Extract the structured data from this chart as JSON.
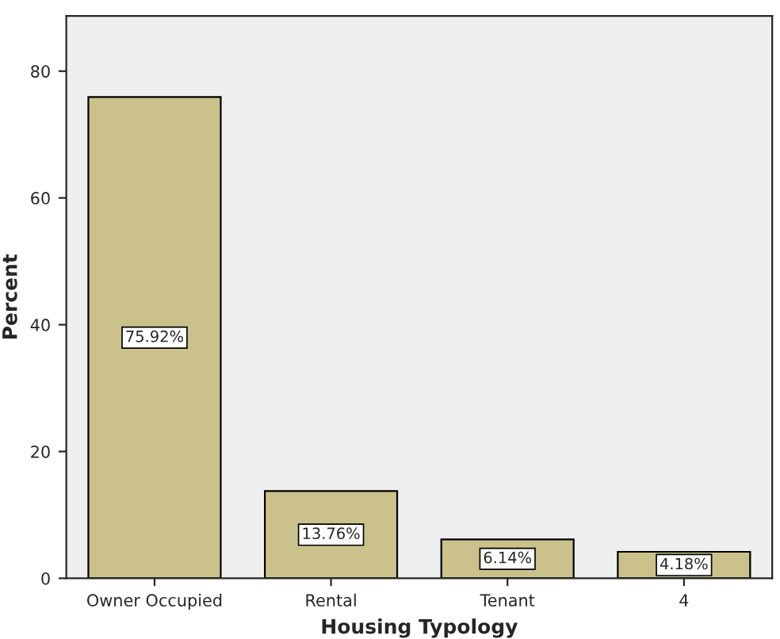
{
  "chart_data": {
    "type": "bar",
    "xlabel": "Housing Typology",
    "ylabel": "Percent",
    "categories": [
      "Owner Occupied",
      "Rental",
      "Tenant",
      "4"
    ],
    "values": [
      75.92,
      13.76,
      6.14,
      4.18
    ],
    "value_labels": [
      "75.92%",
      "13.76%",
      "6.14%",
      "4.18%"
    ],
    "color": "#cbc28b",
    "ylim": [
      0,
      88.7
    ],
    "yticks": [
      0,
      20,
      40,
      60,
      80
    ],
    "grid": false
  }
}
